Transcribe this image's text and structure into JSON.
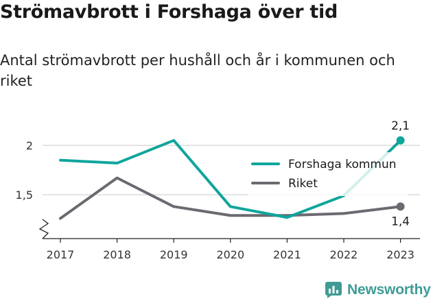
{
  "title": "Strömavbrott i Forshaga över tid",
  "subtitle": "Antal strömavbrott per hushåll och år i kommunen och riket",
  "brand": "Newsworthy",
  "colors": {
    "forshaga": "#0fa59b",
    "riket": "#6b6a70",
    "grid": "#dcdcdc",
    "axis": "#222222",
    "brand": "#3f9c95"
  },
  "chart_data": {
    "type": "line",
    "title": "Strömavbrott i Forshaga över tid",
    "subtitle": "Antal strömavbrott per hushåll och år i kommunen och riket",
    "x": [
      "2017",
      "2018",
      "2019",
      "2020",
      "2021",
      "2022",
      "2023"
    ],
    "series": [
      {
        "name": "Forshaga kommun",
        "values": [
          1.85,
          1.82,
          2.05,
          1.38,
          1.27,
          1.49,
          2.05
        ],
        "color": "#0fa59b"
      },
      {
        "name": "Riket",
        "values": [
          1.26,
          1.67,
          1.38,
          1.29,
          1.29,
          1.31,
          1.38
        ],
        "color": "#6b6a70"
      }
    ],
    "yticks": [
      {
        "value": 1.5,
        "label": "1,5"
      },
      {
        "value": 2,
        "label": "2"
      }
    ],
    "ylim": [
      1.13,
      2.2
    ],
    "axis_break": true,
    "grid": true,
    "legend_position": "right",
    "end_labels": [
      {
        "series": "Forshaga kommun",
        "label": "2,1"
      },
      {
        "series": "Riket",
        "label": "1,4"
      }
    ]
  }
}
